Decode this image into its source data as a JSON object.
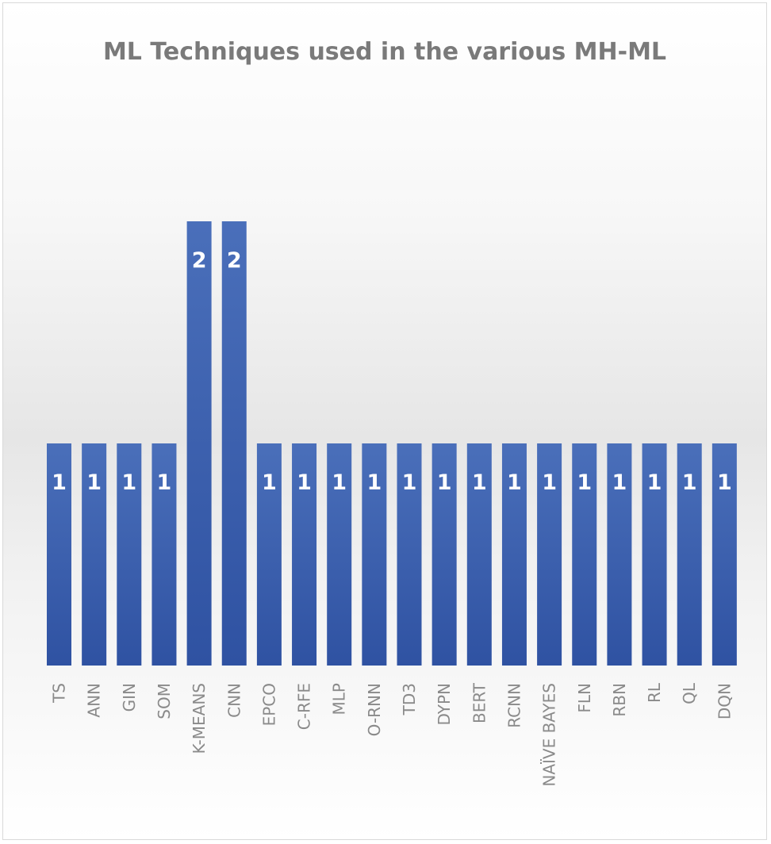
{
  "chart_data": {
    "type": "bar",
    "title": "ML Techniques used in the various MH-ML",
    "categories": [
      "TS",
      "ANN",
      "GIN",
      "SOM",
      "K-MEANS",
      "CNN",
      "EPCO",
      "C-RFE",
      "MLP",
      "O-RNN",
      "TD3",
      "DYPN",
      "BERT",
      "RCNN",
      "NAÏVE BAYES",
      "FLN",
      "RBN",
      "RL",
      "QL",
      "DQN"
    ],
    "values": [
      1,
      1,
      1,
      1,
      2,
      2,
      1,
      1,
      1,
      1,
      1,
      1,
      1,
      1,
      1,
      1,
      1,
      1,
      1,
      1
    ],
    "data_labels": [
      "1",
      "1",
      "1",
      "1",
      "2",
      "2",
      "1",
      "1",
      "1",
      "1",
      "1",
      "1",
      "1",
      "1",
      "1",
      "1",
      "1",
      "1",
      "1",
      "1"
    ],
    "ylim": [
      0,
      2
    ],
    "grid": false,
    "legend": "none",
    "bar_color": "#2f52a2",
    "bar_color_light": "#4a6fba"
  }
}
